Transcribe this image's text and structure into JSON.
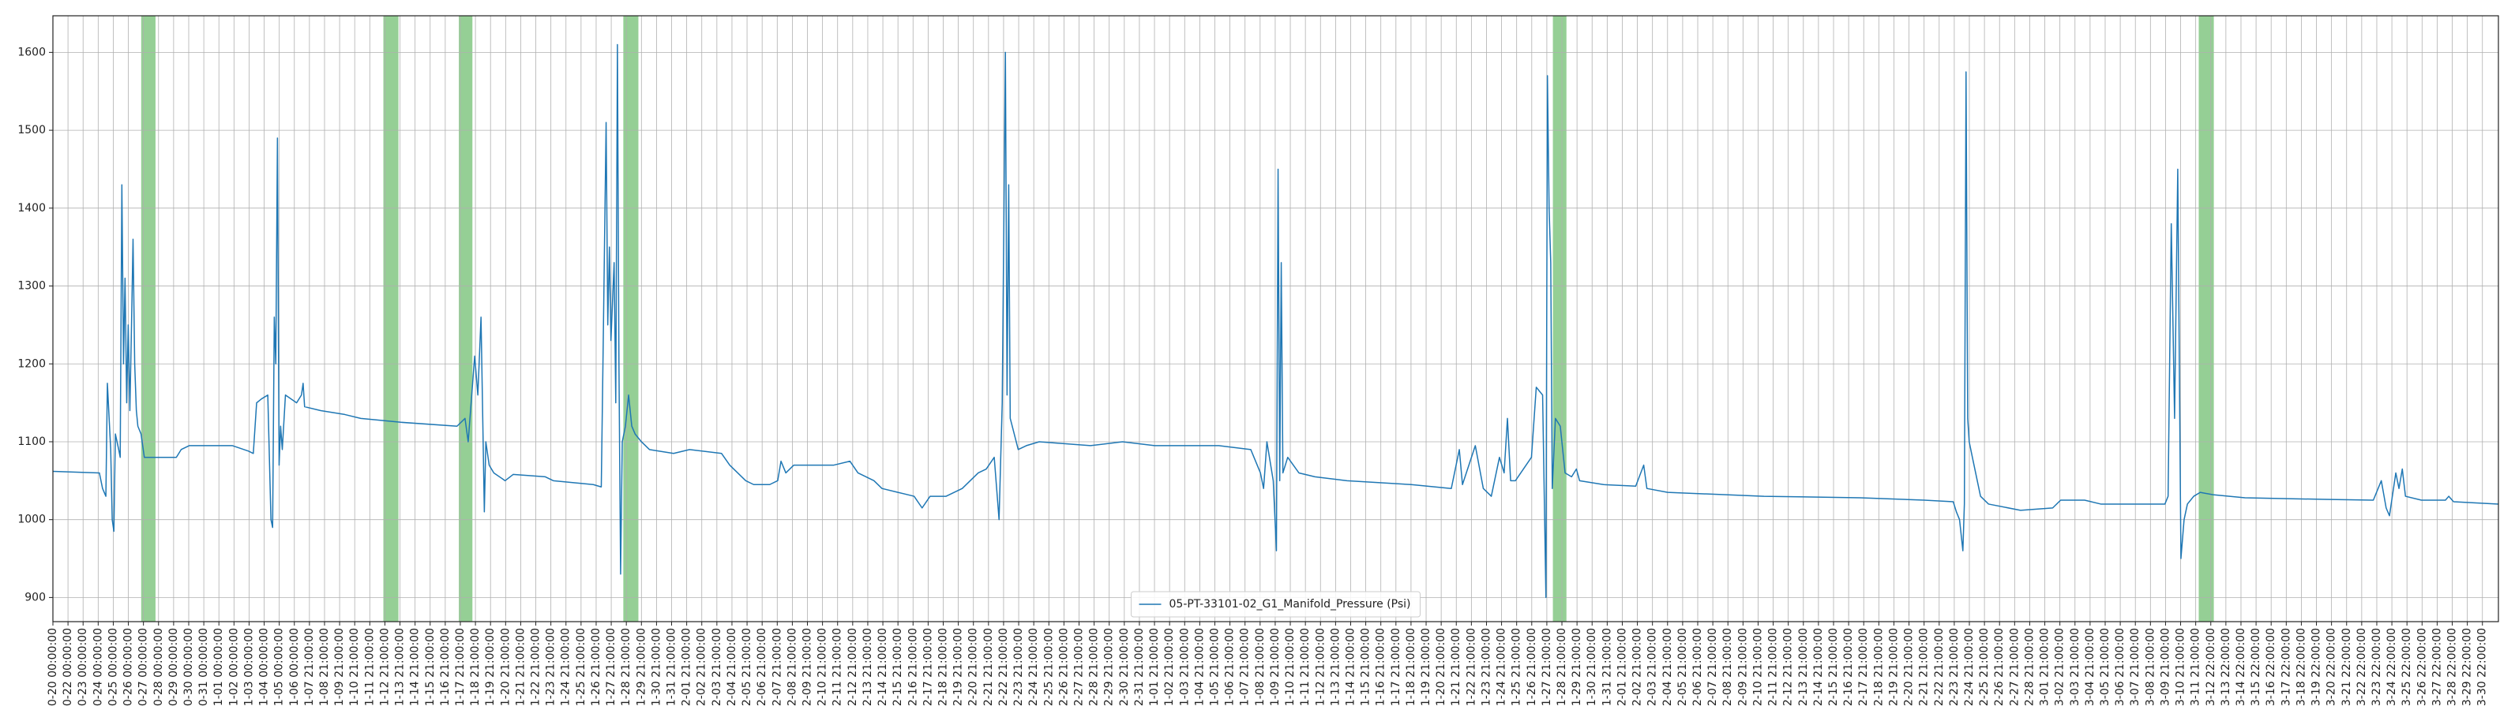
{
  "chart_data": {
    "type": "line",
    "series": [
      {
        "name": "05-PT-33101-02_G1_Manifold_Pressure (Psi)",
        "color": "#1f77b4",
        "x": [
          0,
          3.08,
          3.29,
          3.51,
          3.61,
          3.83,
          3.93,
          4.04,
          4.14,
          4.36,
          4.46,
          4.57,
          4.68,
          4.78,
          4.89,
          4.99,
          5.1,
          5.21,
          5.31,
          5.42,
          5.53,
          5.63,
          5.84,
          6.06,
          8.18,
          8.5,
          9.03,
          11.9,
          12.96,
          13.28,
          13.5,
          13.82,
          14.24,
          14.45,
          14.56,
          14.67,
          14.77,
          14.88,
          14.99,
          15.09,
          15.2,
          15.41,
          16.15,
          16.47,
          16.58,
          16.68,
          17.75,
          19.34,
          20.4,
          23.06,
          26.78,
          27.31,
          27.52,
          27.95,
          28.16,
          28.37,
          28.59,
          28.69,
          28.91,
          29.22,
          29.97,
          30.5,
          32.63,
          33.16,
          35.81,
          36.34,
          36.45,
          36.66,
          36.77,
          36.88,
          36.98,
          37.19,
          37.3,
          37.41,
          37.51,
          37.62,
          37.73,
          37.94,
          38.15,
          38.36,
          38.58,
          39.0,
          39.53,
          41.13,
          42.19,
          44.31,
          44.85,
          45.38,
          45.91,
          46.44,
          47.5,
          48.03,
          48.25,
          48.57,
          49.1,
          51.75,
          52.82,
          53.35,
          54.41,
          54.94,
          56.0,
          57.07,
          57.6,
          58.13,
          59.19,
          60.26,
          61.32,
          61.85,
          62.38,
          62.7,
          62.91,
          63.12,
          63.23,
          63.34,
          63.44,
          63.97,
          64.51,
          65.36,
          68.76,
          70.88,
          73.01,
          77.26,
          79.38,
          80.02,
          80.23,
          80.45,
          80.87,
          81.08,
          81.19,
          81.3,
          81.4,
          81.51,
          81.83,
          82.57,
          83.63,
          85.76,
          90.01,
          92.67,
          93.2,
          93.41,
          94.26,
          94.79,
          95.32,
          95.86,
          96.17,
          96.39,
          96.6,
          96.92,
          97.98,
          98.3,
          98.72,
          98.94,
          99.04,
          99.15,
          99.26,
          99.36,
          99.57,
          99.89,
          100.21,
          100.64,
          100.96,
          101.17,
          102.76,
          104.89,
          105.42,
          105.63,
          107.01,
          113.39,
          119.77,
          124.02,
          125.93,
          126.14,
          126.35,
          126.57,
          126.67,
          126.78,
          126.89,
          126.99,
          127.2,
          127.74,
          128.27,
          130.39,
          132.52,
          133.05,
          134.64,
          135.71,
          139.96,
          140.17,
          140.38,
          140.6,
          140.81,
          141.02,
          141.23,
          141.45,
          141.87,
          142.3,
          143.15,
          145.27,
          150.58,
          153.77,
          154.3,
          154.62,
          154.84,
          155.26,
          155.47,
          155.69,
          155.9,
          156.96,
          158.55,
          158.77,
          159.09,
          162.06
        ],
        "values": [
          1062,
          1060,
          1040,
          1030,
          1175,
          1090,
          1000,
          985,
          1110,
          1090,
          1080,
          1430,
          1200,
          1310,
          1150,
          1250,
          1140,
          1250,
          1360,
          1200,
          1140,
          1120,
          1110,
          1080,
          1080,
          1090,
          1095,
          1095,
          1088,
          1085,
          1150,
          1155,
          1160,
          1000,
          990,
          1260,
          1200,
          1490,
          1070,
          1120,
          1090,
          1160,
          1150,
          1160,
          1175,
          1145,
          1140,
          1135,
          1130,
          1125,
          1120,
          1130,
          1100,
          1210,
          1160,
          1260,
          1010,
          1100,
          1070,
          1060,
          1050,
          1058,
          1055,
          1050,
          1045,
          1042,
          1200,
          1510,
          1250,
          1350,
          1230,
          1330,
          1150,
          1610,
          1200,
          930,
          1100,
          1120,
          1160,
          1120,
          1110,
          1100,
          1090,
          1085,
          1090,
          1085,
          1070,
          1060,
          1050,
          1045,
          1045,
          1050,
          1075,
          1060,
          1070,
          1070,
          1075,
          1060,
          1050,
          1040,
          1035,
          1030,
          1015,
          1030,
          1030,
          1040,
          1060,
          1065,
          1080,
          1000,
          1150,
          1600,
          1160,
          1430,
          1130,
          1090,
          1095,
          1100,
          1095,
          1100,
          1095,
          1095,
          1090,
          1060,
          1040,
          1100,
          1050,
          960,
          1450,
          1050,
          1330,
          1060,
          1080,
          1060,
          1055,
          1050,
          1045,
          1040,
          1090,
          1045,
          1095,
          1040,
          1030,
          1080,
          1060,
          1130,
          1050,
          1050,
          1080,
          1170,
          1160,
          900,
          1570,
          1400,
          1330,
          1040,
          1130,
          1120,
          1060,
          1055,
          1065,
          1050,
          1045,
          1043,
          1070,
          1040,
          1035,
          1030,
          1028,
          1025,
          1023,
          1010,
          1000,
          960,
          1020,
          1575,
          1130,
          1100,
          1080,
          1030,
          1020,
          1012,
          1015,
          1025,
          1025,
          1020,
          1020,
          1030,
          1380,
          1130,
          1450,
          950,
          1000,
          1020,
          1030,
          1035,
          1032,
          1028,
          1026,
          1025,
          1050,
          1015,
          1005,
          1060,
          1040,
          1065,
          1030,
          1025,
          1025,
          1030,
          1023,
          1020
        ]
      }
    ],
    "highlight_spans": [
      [
        5.85,
        6.8
      ],
      [
        21.9,
        22.9
      ],
      [
        26.9,
        27.8
      ],
      [
        37.8,
        38.8
      ],
      [
        99.4,
        100.3
      ],
      [
        142.2,
        143.2
      ]
    ],
    "highlight_color": "#2ca02c",
    "xlim": [
      0,
      162.06
    ],
    "ylim": [
      869,
      1647
    ],
    "yticks": [
      900,
      1000,
      1100,
      1200,
      1300,
      1400,
      1500,
      1600
    ],
    "grid": true,
    "legend": "lower center",
    "xticks": [
      {
        "value": 0,
        "label": "0-20 00:00:00"
      },
      {
        "value": 1,
        "label": "0-22 00:00:00"
      },
      {
        "value": 2,
        "label": "0-23 00:00:00"
      },
      {
        "value": 3,
        "label": "0-24 00:00:00"
      },
      {
        "value": 4,
        "label": "0-25 00:00:00"
      },
      {
        "value": 5,
        "label": "0-26 00:00:00"
      },
      {
        "value": 6,
        "label": "0-27 00:00:00"
      },
      {
        "value": 7,
        "label": "0-28 00:00:00"
      },
      {
        "value": 8,
        "label": "0-29 00:00:00"
      },
      {
        "value": 9,
        "label": "0-30 00:00:00"
      },
      {
        "value": 10,
        "label": "0-31 00:00:00"
      },
      {
        "value": 11,
        "label": "1-01 00:00:00"
      },
      {
        "value": 12,
        "label": "1-02 00:00:00"
      },
      {
        "value": 13,
        "label": "1-03 00:00:00"
      },
      {
        "value": 14,
        "label": "1-04 00:00:00"
      },
      {
        "value": 15,
        "label": "1-05 00:00:00"
      },
      {
        "value": 16,
        "label": "1-06 00:00:00"
      },
      {
        "value": 17,
        "label": "1-07 21:00:00"
      },
      {
        "value": 18,
        "label": "1-08 21:00:00"
      },
      {
        "value": 19,
        "label": "1-09 21:00:00"
      },
      {
        "value": 20,
        "label": "1-10 21:00:00"
      },
      {
        "value": 21,
        "label": "1-11 21:00:00"
      },
      {
        "value": 22,
        "label": "1-12 21:00:00"
      },
      {
        "value": 23,
        "label": "1-13 21:00:00"
      },
      {
        "value": 24,
        "label": "1-14 21:00:00"
      },
      {
        "value": 25,
        "label": "1-15 21:00:00"
      },
      {
        "value": 26,
        "label": "1-16 21:00:00"
      },
      {
        "value": 27,
        "label": "1-17 21:00:00"
      },
      {
        "value": 28,
        "label": "1-18 21:00:00"
      },
      {
        "value": 29,
        "label": "1-19 21:00:00"
      },
      {
        "value": 30,
        "label": "1-20 21:00:00"
      },
      {
        "value": 31,
        "label": "1-21 21:00:00"
      },
      {
        "value": 32,
        "label": "1-22 21:00:00"
      },
      {
        "value": 33,
        "label": "1-23 21:00:00"
      },
      {
        "value": 34,
        "label": "1-24 21:00:00"
      },
      {
        "value": 35,
        "label": "1-25 21:00:00"
      },
      {
        "value": 36,
        "label": "1-26 21:00:00"
      },
      {
        "value": 37,
        "label": "1-27 21:00:00"
      },
      {
        "value": 38,
        "label": "1-28 21:00:00"
      },
      {
        "value": 39,
        "label": "1-29 21:00:00"
      },
      {
        "value": 40,
        "label": "1-30 21:00:00"
      },
      {
        "value": 41,
        "label": "1-31 21:00:00"
      },
      {
        "value": 42,
        "label": "2-01 21:00:00"
      },
      {
        "value": 43,
        "label": "2-02 21:00:00"
      },
      {
        "value": 44,
        "label": "2-03 21:00:00"
      },
      {
        "value": 45,
        "label": "2-04 21:00:00"
      },
      {
        "value": 46,
        "label": "2-05 21:00:00"
      },
      {
        "value": 47,
        "label": "2-06 21:00:00"
      },
      {
        "value": 48,
        "label": "2-07 21:00:00"
      },
      {
        "value": 49,
        "label": "2-08 21:00:00"
      },
      {
        "value": 50,
        "label": "2-09 21:00:00"
      },
      {
        "value": 51,
        "label": "2-10 21:00:00"
      },
      {
        "value": 52,
        "label": "2-11 21:00:00"
      },
      {
        "value": 53,
        "label": "2-12 21:00:00"
      },
      {
        "value": 54,
        "label": "2-13 21:00:00"
      },
      {
        "value": 55,
        "label": "2-14 21:00:00"
      },
      {
        "value": 56,
        "label": "2-15 21:00:00"
      },
      {
        "value": 57,
        "label": "2-16 21:00:00"
      },
      {
        "value": 58,
        "label": "2-17 21:00:00"
      },
      {
        "value": 59,
        "label": "2-18 21:00:00"
      },
      {
        "value": 60,
        "label": "2-19 21:00:00"
      },
      {
        "value": 61,
        "label": "2-20 21:00:00"
      },
      {
        "value": 62,
        "label": "2-21 21:00:00"
      },
      {
        "value": 63,
        "label": "2-22 21:00:00"
      },
      {
        "value": 64,
        "label": "2-23 21:00:00"
      },
      {
        "value": 65,
        "label": "2-24 21:00:00"
      },
      {
        "value": 66,
        "label": "2-25 21:00:00"
      },
      {
        "value": 67,
        "label": "2-26 21:00:00"
      },
      {
        "value": 68,
        "label": "2-27 21:00:00"
      },
      {
        "value": 69,
        "label": "2-28 21:00:00"
      },
      {
        "value": 70,
        "label": "2-29 21:00:00"
      },
      {
        "value": 71,
        "label": "2-30 21:00:00"
      },
      {
        "value": 72,
        "label": "2-31 21:00:00"
      },
      {
        "value": 73,
        "label": "1-01 21:00:00"
      },
      {
        "value": 74,
        "label": "1-02 21:00:00"
      },
      {
        "value": 75,
        "label": "1-03 21:00:00"
      },
      {
        "value": 76,
        "label": "1-04 21:00:00"
      },
      {
        "value": 77,
        "label": "1-05 21:00:00"
      },
      {
        "value": 78,
        "label": "1-06 21:00:00"
      },
      {
        "value": 79,
        "label": "1-07 21:00:00"
      },
      {
        "value": 80,
        "label": "1-08 21:00:00"
      },
      {
        "value": 81,
        "label": "1-09 21:00:00"
      },
      {
        "value": 82,
        "label": "1-10 21:00:00"
      },
      {
        "value": 83,
        "label": "1-11 21:00:00"
      },
      {
        "value": 84,
        "label": "1-12 21:00:00"
      },
      {
        "value": 85,
        "label": "1-13 21:00:00"
      },
      {
        "value": 86,
        "label": "1-14 21:00:00"
      },
      {
        "value": 87,
        "label": "1-15 21:00:00"
      },
      {
        "value": 88,
        "label": "1-16 21:00:00"
      },
      {
        "value": 89,
        "label": "1-17 21:00:00"
      },
      {
        "value": 90,
        "label": "1-18 21:00:00"
      },
      {
        "value": 91,
        "label": "1-19 21:00:00"
      },
      {
        "value": 92,
        "label": "1-20 21:00:00"
      },
      {
        "value": 93,
        "label": "1-21 21:00:00"
      },
      {
        "value": 94,
        "label": "1-22 21:00:00"
      },
      {
        "value": 95,
        "label": "1-23 21:00:00"
      },
      {
        "value": 96,
        "label": "1-24 21:00:00"
      },
      {
        "value": 97,
        "label": "1-25 21:00:00"
      },
      {
        "value": 98,
        "label": "1-26 21:00:00"
      },
      {
        "value": 99,
        "label": "1-27 21:00:00"
      },
      {
        "value": 100,
        "label": "1-28 21:00:00"
      },
      {
        "value": 101,
        "label": "1-29 21:00:00"
      },
      {
        "value": 102,
        "label": "1-30 21:00:00"
      },
      {
        "value": 103,
        "label": "1-31 21:00:00"
      },
      {
        "value": 104,
        "label": "2-01 21:00:00"
      },
      {
        "value": 105,
        "label": "2-02 21:00:00"
      },
      {
        "value": 106,
        "label": "2-03 21:00:00"
      },
      {
        "value": 107,
        "label": "2-04 21:00:00"
      },
      {
        "value": 108,
        "label": "2-05 21:00:00"
      },
      {
        "value": 109,
        "label": "2-06 21:00:00"
      },
      {
        "value": 110,
        "label": "2-07 21:00:00"
      },
      {
        "value": 111,
        "label": "2-08 21:00:00"
      },
      {
        "value": 112,
        "label": "2-09 21:00:00"
      },
      {
        "value": 113,
        "label": "2-10 21:00:00"
      },
      {
        "value": 114,
        "label": "2-11 21:00:00"
      },
      {
        "value": 115,
        "label": "2-12 21:00:00"
      },
      {
        "value": 116,
        "label": "2-13 21:00:00"
      },
      {
        "value": 117,
        "label": "2-14 21:00:00"
      },
      {
        "value": 118,
        "label": "2-15 21:00:00"
      },
      {
        "value": 119,
        "label": "2-16 21:00:00"
      },
      {
        "value": 120,
        "label": "2-17 21:00:00"
      },
      {
        "value": 121,
        "label": "2-18 21:00:00"
      },
      {
        "value": 122,
        "label": "2-19 21:00:00"
      },
      {
        "value": 123,
        "label": "2-20 21:00:00"
      },
      {
        "value": 124,
        "label": "2-21 21:00:00"
      },
      {
        "value": 125,
        "label": "2-22 21:00:00"
      },
      {
        "value": 126,
        "label": "2-23 21:00:00"
      },
      {
        "value": 127,
        "label": "2-24 21:00:00"
      },
      {
        "value": 128,
        "label": "2-25 21:00:00"
      },
      {
        "value": 129,
        "label": "2-26 21:00:00"
      },
      {
        "value": 130,
        "label": "2-27 21:00:00"
      },
      {
        "value": 131,
        "label": "2-28 21:00:00"
      },
      {
        "value": 132,
        "label": "3-01 21:00:00"
      },
      {
        "value": 133,
        "label": "3-02 21:00:00"
      },
      {
        "value": 134,
        "label": "3-03 21:00:00"
      },
      {
        "value": 135,
        "label": "3-04 21:00:00"
      },
      {
        "value": 136,
        "label": "3-05 21:00:00"
      },
      {
        "value": 137,
        "label": "3-06 21:00:00"
      },
      {
        "value": 138,
        "label": "3-07 21:00:00"
      },
      {
        "value": 139,
        "label": "3-08 21:00:00"
      },
      {
        "value": 140,
        "label": "3-09 21:00:00"
      },
      {
        "value": 141,
        "label": "3-10 21:00:00"
      },
      {
        "value": 142,
        "label": "3-11 21:00:00"
      },
      {
        "value": 143,
        "label": "3-12 22:00:00"
      },
      {
        "value": 144,
        "label": "3-13 22:00:00"
      },
      {
        "value": 145,
        "label": "3-14 22:00:00"
      },
      {
        "value": 146,
        "label": "3-15 22:00:00"
      },
      {
        "value": 147,
        "label": "3-16 22:00:00"
      },
      {
        "value": 148,
        "label": "3-17 22:00:00"
      },
      {
        "value": 149,
        "label": "3-18 22:00:00"
      },
      {
        "value": 150,
        "label": "3-19 22:00:00"
      },
      {
        "value": 151,
        "label": "3-20 22:00:00"
      },
      {
        "value": 152,
        "label": "3-21 22:00:00"
      },
      {
        "value": 153,
        "label": "3-22 22:00:00"
      },
      {
        "value": 154,
        "label": "3-23 22:00:00"
      },
      {
        "value": 155,
        "label": "3-24 22:00:00"
      },
      {
        "value": 156,
        "label": "3-25 22:00:00"
      },
      {
        "value": 157,
        "label": "3-26 22:00:00"
      },
      {
        "value": 158,
        "label": "3-27 22:00:00"
      },
      {
        "value": 159,
        "label": "3-28 22:00:00"
      },
      {
        "value": 160,
        "label": "3-29 22:00:00"
      },
      {
        "value": 161,
        "label": "3-30 22:00:00"
      }
    ]
  }
}
